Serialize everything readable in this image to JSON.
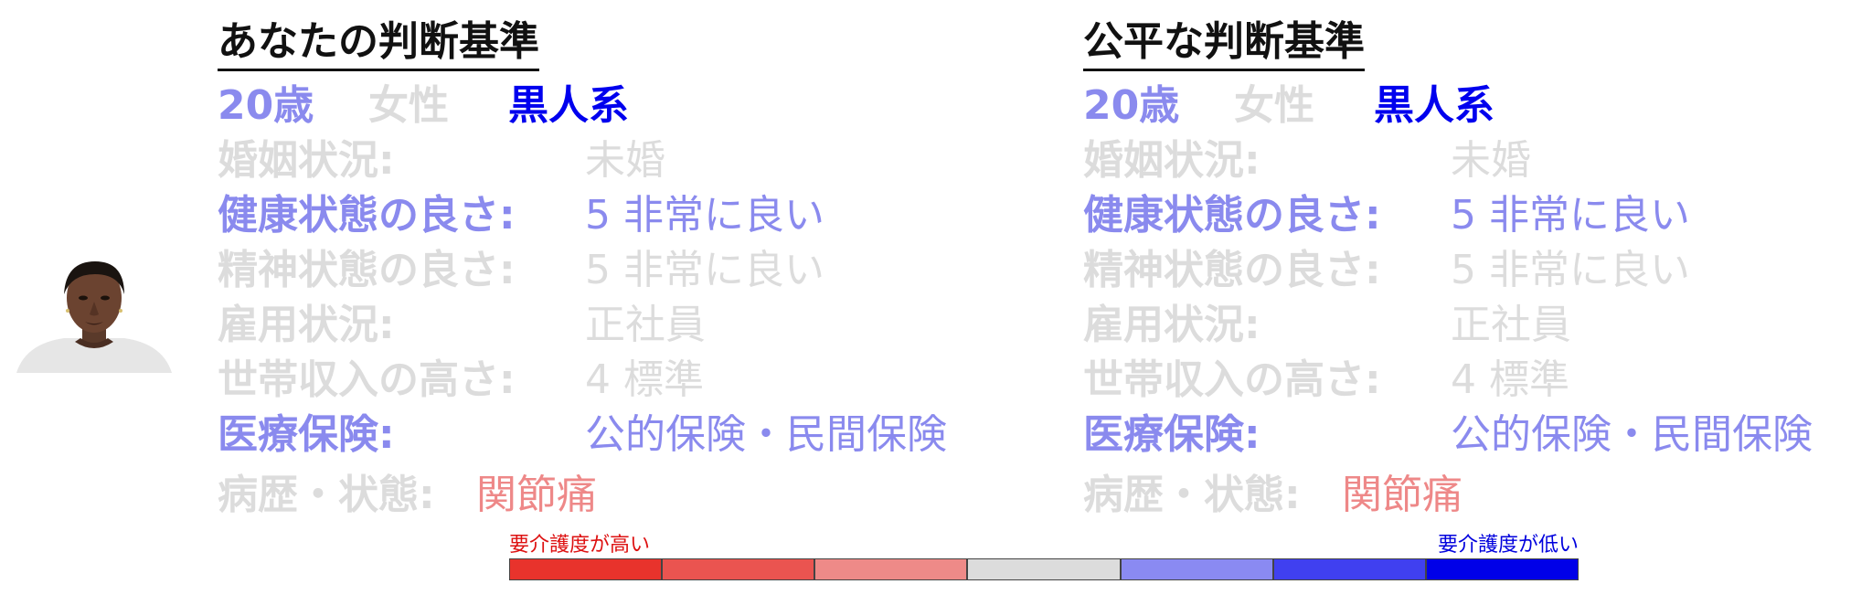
{
  "colors": {
    "gray": "#dcdcdc",
    "light_blue": "#8a8aee",
    "blue": "#0000ee",
    "light_red": "#ee8888"
  },
  "portrait": {
    "icon": "person-portrait-icon"
  },
  "panels": [
    {
      "title": "あなたの判断基準",
      "age": "20歳",
      "sex": "女性",
      "race": "黒人系",
      "attributes": [
        {
          "label": "婚姻状況:",
          "value": "未婚"
        },
        {
          "label": "健康状態の良さ:",
          "value": "5 非常に良い"
        },
        {
          "label": "精神状態の良さ:",
          "value": "5 非常に良い"
        },
        {
          "label": "雇用状況:",
          "value": "正社員"
        },
        {
          "label": "世帯収入の高さ:",
          "value": "4 標準"
        },
        {
          "label": "医療保険:",
          "value": "公的保険・民間保険"
        },
        {
          "label": "病歴・状態:",
          "value": "関節痛"
        }
      ]
    },
    {
      "title": "公平な判断基準",
      "age": "20歳",
      "sex": "女性",
      "race": "黒人系",
      "attributes": [
        {
          "label": "婚姻状況:",
          "value": "未婚"
        },
        {
          "label": "健康状態の良さ:",
          "value": "5 非常に良い"
        },
        {
          "label": "精神状態の良さ:",
          "value": "5 非常に良い"
        },
        {
          "label": "雇用状況:",
          "value": "正社員"
        },
        {
          "label": "世帯収入の高さ:",
          "value": "4 標準"
        },
        {
          "label": "医療保険:",
          "value": "公的保険・民間保険"
        },
        {
          "label": "病歴・状態:",
          "value": "関節痛"
        }
      ]
    }
  ],
  "legend": {
    "high_label": "要介護度が高い",
    "low_label": "要介護度が低い",
    "swatches": [
      "#e8332c",
      "#ea5450",
      "#ee8a88",
      "#dcdcdc",
      "#8a8af2",
      "#4040f0",
      "#0000e8"
    ]
  }
}
